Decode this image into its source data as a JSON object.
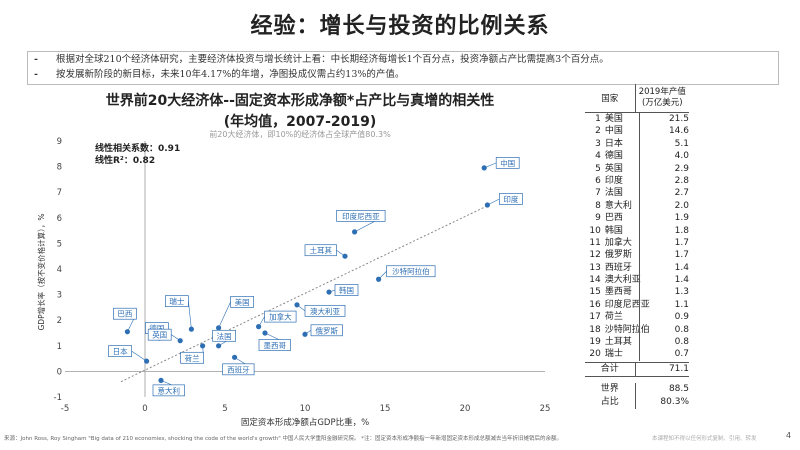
{
  "slide": {
    "title": "经验：增长与投资的比例关系",
    "bullets": [
      "根据对全球210个经济体研究，主要经济体投资与增长统计上看：中长期经济每增长1个百分点，投资净额占产比需提高3个百分点。",
      "按发展新阶段的新目标，未来10年4.17%的年增，净图投成仪需占约13%的产值。"
    ],
    "page_number": "4",
    "footnote": "来源：John Ross, Roy Singham \"Big data of 210 economies, shocking the code of the world's growth\" 中国人民大学重阳金融研究院。 *注：固定资本形成净额指一年新增固定资本形成总额减去当年折旧摊销后的余额。",
    "footer_right": "本课程知不得以任何形式复制、引用、转发"
  },
  "chart_data": {
    "type": "scatter",
    "title_line1": "世界前20大经济体--固定资本形成净额*占产比与真增的相关性",
    "title_line2": "(年均值，2007-2019)",
    "subtitle": "前20大经济体，即10%的经济体占全球产值80.3%",
    "xlabel": "固定资本形成净额占GDP比重，%",
    "ylabel": "GDP增长率（按不变价格计算），%",
    "xlim": [
      -5,
      25
    ],
    "ylim": [
      -1,
      9
    ],
    "x_ticks": [
      "-5",
      "0",
      "5",
      "10",
      "15",
      "20",
      "25"
    ],
    "y_ticks": [
      "-1",
      "0",
      "1",
      "2",
      "3",
      "4",
      "5",
      "6",
      "7",
      "8",
      "9"
    ],
    "annotation_corr": "线性相关系数：0.91",
    "annotation_r2": "线性R²：0.82",
    "trendline": {
      "x": [
        -1.5,
        21.5
      ],
      "y": [
        -0.4,
        6.5
      ]
    },
    "points": [
      {
        "name": "中国",
        "x": 21.2,
        "y": 7.95
      },
      {
        "name": "印度",
        "x": 21.4,
        "y": 6.5
      },
      {
        "name": "印度尼西亚",
        "x": 13.1,
        "y": 5.45
      },
      {
        "name": "土耳其",
        "x": 12.5,
        "y": 4.5
      },
      {
        "name": "沙特阿拉伯",
        "x": 14.6,
        "y": 3.6
      },
      {
        "name": "韩国",
        "x": 11.5,
        "y": 3.1
      },
      {
        "name": "澳大利亚",
        "x": 9.5,
        "y": 2.6
      },
      {
        "name": "加拿大",
        "x": 7.1,
        "y": 1.75
      },
      {
        "name": "墨西哥",
        "x": 7.5,
        "y": 1.5
      },
      {
        "name": "俄罗斯",
        "x": 10.0,
        "y": 1.45
      },
      {
        "name": "巴西",
        "x": -1.1,
        "y": 1.55
      },
      {
        "name": "德国",
        "x": 0.9,
        "y": 1.3
      },
      {
        "name": "英国",
        "x": 2.2,
        "y": 1.2
      },
      {
        "name": "瑞士",
        "x": 2.9,
        "y": 1.65
      },
      {
        "name": "美国",
        "x": 4.6,
        "y": 1.7
      },
      {
        "name": "法国",
        "x": 4.6,
        "y": 1.0
      },
      {
        "name": "荷兰",
        "x": 3.6,
        "y": 1.0
      },
      {
        "name": "西班牙",
        "x": 5.6,
        "y": 0.55
      },
      {
        "name": "日本",
        "x": 0.1,
        "y": 0.4
      },
      {
        "name": "意大利",
        "x": 1.0,
        "y": -0.35
      }
    ]
  },
  "table": {
    "header_country": "国家",
    "header_value_line1": "2019年产值",
    "header_value_line2": "(万亿美元)",
    "rows": [
      {
        "rank": "1",
        "country": "美国",
        "value": "21.5"
      },
      {
        "rank": "2",
        "country": "中国",
        "value": "14.6"
      },
      {
        "rank": "3",
        "country": "日本",
        "value": "5.1"
      },
      {
        "rank": "4",
        "country": "德国",
        "value": "4.0"
      },
      {
        "rank": "5",
        "country": "英国",
        "value": "2.9"
      },
      {
        "rank": "6",
        "country": "印度",
        "value": "2.8"
      },
      {
        "rank": "7",
        "country": "法国",
        "value": "2.7"
      },
      {
        "rank": "8",
        "country": "意大利",
        "value": "2.0"
      },
      {
        "rank": "9",
        "country": "巴西",
        "value": "1.9"
      },
      {
        "rank": "10",
        "country": "韩国",
        "value": "1.8"
      },
      {
        "rank": "11",
        "country": "加拿大",
        "value": "1.7"
      },
      {
        "rank": "12",
        "country": "俄罗斯",
        "value": "1.7"
      },
      {
        "rank": "13",
        "country": "西班牙",
        "value": "1.4"
      },
      {
        "rank": "14",
        "country": "澳大利亚",
        "value": "1.4"
      },
      {
        "rank": "15",
        "country": "墨西哥",
        "value": "1.3"
      },
      {
        "rank": "16",
        "country": "印度尼西亚",
        "value": "1.1"
      },
      {
        "rank": "17",
        "country": "荷兰",
        "value": "0.9"
      },
      {
        "rank": "18",
        "country": "沙特阿拉伯",
        "value": "0.8"
      },
      {
        "rank": "19",
        "country": "土耳其",
        "value": "0.8"
      },
      {
        "rank": "20",
        "country": "瑞士",
        "value": "0.7"
      }
    ],
    "total_label": "合计",
    "total_value": "71.1",
    "world_label": "世界",
    "world_value": "88.5",
    "share_label": "占比",
    "share_value": "80.3%"
  },
  "colors": {
    "point": "#2e6fb4",
    "label_border": "#2e6fb4",
    "label_text": "#2e6fb4",
    "trendline": "#888888",
    "axis": "#999999"
  }
}
